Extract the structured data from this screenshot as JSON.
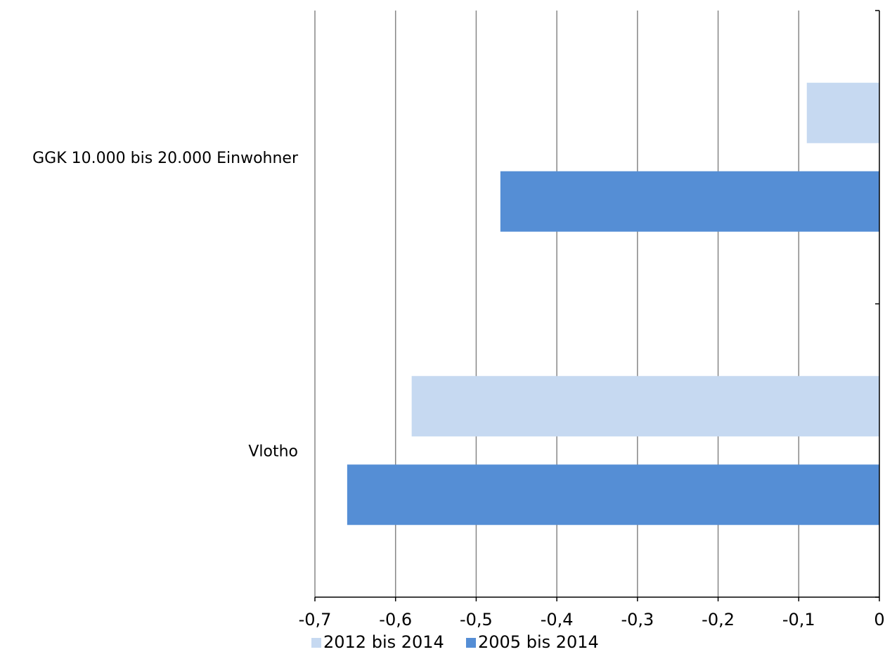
{
  "chart_data": {
    "type": "bar",
    "orientation": "horizontal",
    "categories": [
      "GGK 10.000 bis 20.000 Einwohner",
      "Vlotho"
    ],
    "series": [
      {
        "name": "2012 bis 2014",
        "values": [
          -0.09,
          -0.58
        ],
        "color": "#c6d9f1"
      },
      {
        "name": "2005 bis 2014",
        "values": [
          -0.47,
          -0.66
        ],
        "color": "#558ed5"
      }
    ],
    "xlim": [
      -0.7,
      0
    ],
    "x_ticks": [
      -0.7,
      -0.6,
      -0.5,
      -0.4,
      -0.3,
      -0.2,
      -0.1,
      0
    ],
    "x_tick_labels": [
      "-0,7",
      "-0,6",
      "-0,5",
      "-0,4",
      "-0,3",
      "-0,2",
      "-0,1",
      "0"
    ],
    "title": "",
    "xlabel": "",
    "ylabel": "",
    "grid": true,
    "gridline_color": "#868686",
    "legend_position": "bottom"
  }
}
